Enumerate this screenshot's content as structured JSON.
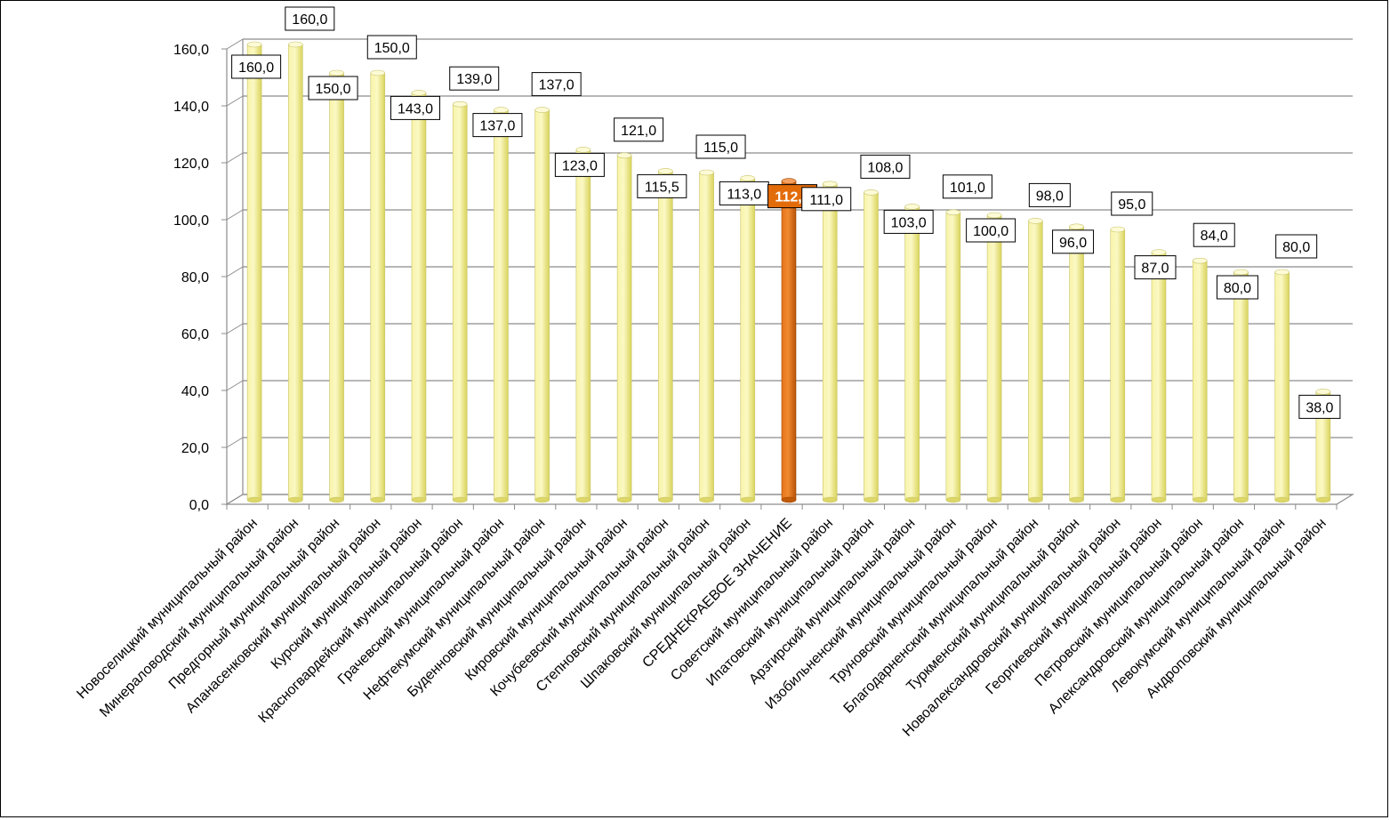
{
  "chart_data": {
    "type": "bar",
    "title": "",
    "xlabel": "",
    "ylabel": "",
    "ylim": [
      0,
      160
    ],
    "yticks": [
      0,
      20,
      40,
      60,
      80,
      100,
      120,
      140,
      160
    ],
    "ytick_labels": [
      "0,0",
      "20,0",
      "40,0",
      "60,0",
      "80,0",
      "100,0",
      "120,0",
      "140,0",
      "160,0"
    ],
    "grid": true,
    "legend": "none",
    "bar_color": "#f5f08a",
    "highlight_color": "#e36c0a",
    "highlight_index": 13,
    "categories": [
      "Новоселицкий муниципальный район",
      "Минераловодский муниципальный район",
      "Предгорный муниципальный район",
      "Апанасенковский муниципальный район",
      "Курский муниципальный район",
      "Красногвардейский муниципальный район",
      "Грачевский муниципальный район",
      "Нефтекумский муниципальный район",
      "Буденновский муниципальный район",
      "Кировский муниципальный район",
      "Кочубеевский муниципальный район",
      "Степновский муниципальный район",
      "Шпаковский муниципальный район",
      "СРЕДНЕКРАЕВОЕ ЗНАЧЕНИЕ",
      "Советский муниципальный район",
      "Ипатовский муниципальный район",
      "Арзгирский муниципальный район",
      "Изобильненский муниципальный район",
      "Труновский муниципальный район",
      "Благодарненский муниципальный район",
      "Туркменский муниципальный район",
      "Новоалександровский муниципальный район",
      "Георгиевский муниципальный район",
      "Петровский муниципальный район",
      "Александровский муниципальный район",
      "Левокумский муниципальный район",
      "Андроповский муниципальный район"
    ],
    "values": [
      160,
      160,
      150,
      150,
      143,
      139,
      137,
      137,
      123,
      121,
      115.5,
      115,
      113,
      112,
      111,
      108,
      103,
      101,
      100,
      98,
      96,
      95,
      87,
      84,
      80,
      80,
      38
    ],
    "value_labels": [
      "160,0",
      "160,0",
      "150,0",
      "150,0",
      "143,0",
      "139,0",
      "137,0",
      "137,0",
      "123,0",
      "121,0",
      "115,5",
      "115,0",
      "113,0",
      "112,0",
      "111,0",
      "108,0",
      "103,0",
      "101,0",
      "100,0",
      "98,0",
      "96,0",
      "95,0",
      "87,0",
      "84,0",
      "80,0",
      "80,0",
      "38,0"
    ]
  }
}
